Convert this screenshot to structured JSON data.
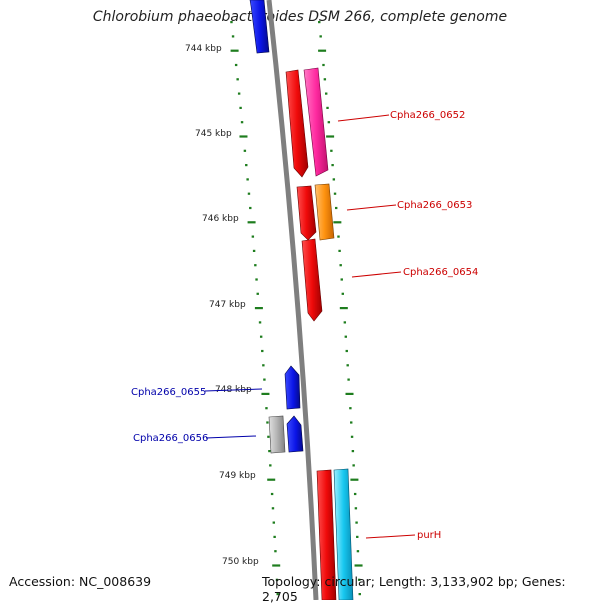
{
  "title": "Chlorobium phaeobacteroides DSM 266, complete genome",
  "footer": {
    "accession": "Accession: NC_008639",
    "summary": "Topology: circular; Length: 3,133,902 bp; Genes: 2,705"
  },
  "colors": {
    "backbone": "#7f7f7f",
    "tick": "#1e7d1e",
    "gene_label_forward": "#cc0000",
    "gene_label_reverse": "#0000aa"
  },
  "scale_labels": [
    "744 kbp",
    "745 kbp",
    "746 kbp",
    "747 kbp",
    "748 kbp",
    "749 kbp",
    "750 kbp"
  ],
  "gene_labels": [
    {
      "text": "Cpha266_0652",
      "strand": "forward"
    },
    {
      "text": "Cpha266_0653",
      "strand": "forward"
    },
    {
      "text": "Cpha266_0654",
      "strand": "forward"
    },
    {
      "text": "Cpha266_0655",
      "strand": "reverse"
    },
    {
      "text": "Cpha266_0656",
      "strand": "reverse"
    },
    {
      "text": "purH",
      "strand": "forward"
    }
  ],
  "gene_colors": {
    "blue": "#0a14e6",
    "red": "#f00a0a",
    "pink": "#ff2aa0",
    "orange": "#ff9310",
    "gray": "#b4b4b4",
    "cyan": "#18c8f0"
  }
}
